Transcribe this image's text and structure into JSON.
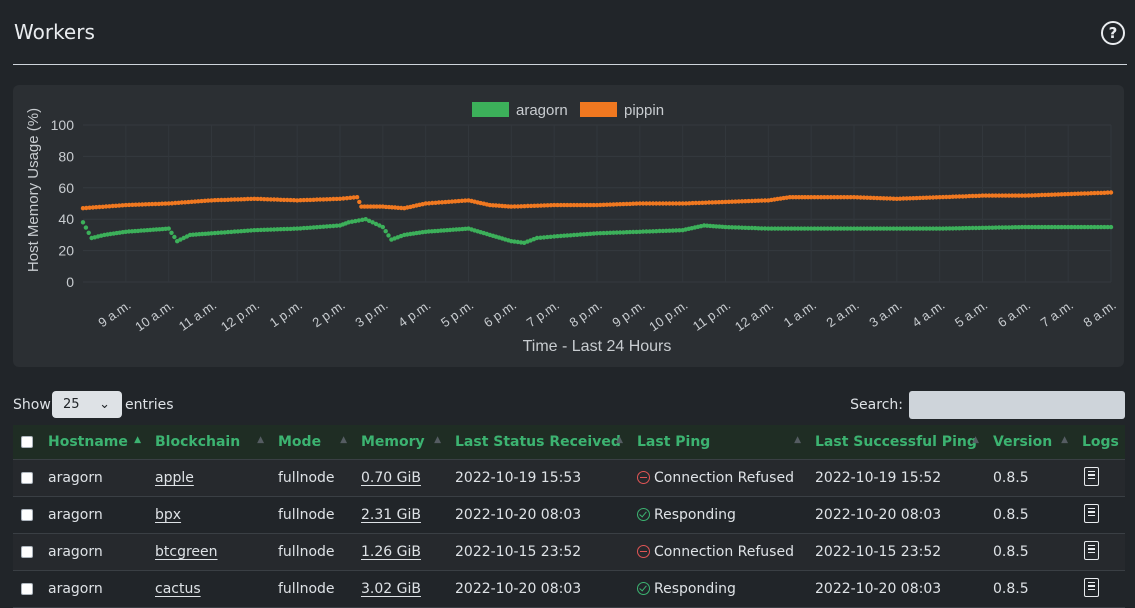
{
  "page": {
    "title": "Workers",
    "help_icon": "question-circle-icon",
    "help_glyph": "?"
  },
  "chart_data": {
    "type": "line",
    "legend": [
      {
        "name": "aragorn",
        "color": "#3cb05a"
      },
      {
        "name": "pippin",
        "color": "#f07820"
      }
    ],
    "ylabel": "Host Memory Usage (%)",
    "xlabel": "Time - Last 24 Hours",
    "ylim": [
      0,
      100
    ],
    "yticks": [
      "100",
      "80",
      "60",
      "40",
      "20",
      "0"
    ],
    "xticks": [
      "9 a.m.",
      "10 a.m.",
      "11 a.m.",
      "12 p.m.",
      "1 p.m.",
      "2 p.m.",
      "3 p.m.",
      "4 p.m.",
      "5 p.m.",
      "6 p.m.",
      "7 p.m.",
      "8 p.m.",
      "9 p.m.",
      "10 p.m.",
      "11 p.m.",
      "12 a.m.",
      "1 a.m.",
      "2 a.m.",
      "3 a.m.",
      "4 a.m.",
      "5 a.m.",
      "6 a.m.",
      "7 a.m.",
      "8 a.m."
    ],
    "x_hours": [
      8,
      32
    ],
    "series": [
      {
        "name": "aragorn",
        "points": [
          [
            8,
            38
          ],
          [
            8.2,
            28
          ],
          [
            8.5,
            30
          ],
          [
            9,
            32
          ],
          [
            9.5,
            33
          ],
          [
            10,
            34
          ],
          [
            10.2,
            26
          ],
          [
            10.5,
            30
          ],
          [
            11,
            31
          ],
          [
            12,
            33
          ],
          [
            13,
            34
          ],
          [
            14,
            36
          ],
          [
            14.2,
            38
          ],
          [
            14.6,
            40
          ],
          [
            15,
            35
          ],
          [
            15.2,
            27
          ],
          [
            15.5,
            30
          ],
          [
            16,
            32
          ],
          [
            16.5,
            33
          ],
          [
            17,
            34
          ],
          [
            17.5,
            30
          ],
          [
            18,
            26
          ],
          [
            18.3,
            25
          ],
          [
            18.6,
            28
          ],
          [
            19,
            29
          ],
          [
            20,
            31
          ],
          [
            21,
            32
          ],
          [
            22,
            33
          ],
          [
            22.5,
            36
          ],
          [
            23,
            35
          ],
          [
            24,
            34
          ],
          [
            26,
            34
          ],
          [
            28,
            34
          ],
          [
            30,
            35
          ],
          [
            32,
            35
          ]
        ]
      },
      {
        "name": "pippin",
        "points": [
          [
            8,
            47
          ],
          [
            9,
            49
          ],
          [
            10,
            50
          ],
          [
            11,
            52
          ],
          [
            12,
            53
          ],
          [
            13,
            52
          ],
          [
            14,
            53
          ],
          [
            14.4,
            54
          ],
          [
            14.5,
            48
          ],
          [
            15,
            48
          ],
          [
            15.5,
            47
          ],
          [
            16,
            50
          ],
          [
            17,
            52
          ],
          [
            17.5,
            49
          ],
          [
            18,
            48
          ],
          [
            19,
            49
          ],
          [
            20,
            49
          ],
          [
            21,
            50
          ],
          [
            22,
            50
          ],
          [
            23,
            51
          ],
          [
            24,
            52
          ],
          [
            24.5,
            54
          ],
          [
            25,
            54
          ],
          [
            26,
            54
          ],
          [
            27,
            53
          ],
          [
            28,
            54
          ],
          [
            29,
            55
          ],
          [
            30,
            55
          ],
          [
            31,
            56
          ],
          [
            32,
            57
          ]
        ]
      }
    ]
  },
  "controls": {
    "show_label": "Show",
    "page_size": "25",
    "entries_label": "entries",
    "search_label": "Search:",
    "search_value": ""
  },
  "table": {
    "columns": [
      "Hostname",
      "Blockchain",
      "Mode",
      "Memory",
      "Last Status Received",
      "Last Ping",
      "Last Successful Ping",
      "Version",
      "Logs"
    ],
    "rows": [
      {
        "hostname": "aragorn",
        "blockchain": "apple",
        "mode": "fullnode",
        "memory": "0.70 GiB",
        "last_status": "2022-10-19 15:53",
        "ping_state": "refused",
        "ping": "Connection Refused",
        "last_success": "2022-10-19 15:52",
        "version": "0.8.5"
      },
      {
        "hostname": "aragorn",
        "blockchain": "bpx",
        "mode": "fullnode",
        "memory": "2.31 GiB",
        "last_status": "2022-10-20 08:03",
        "ping_state": "ok",
        "ping": "Responding",
        "last_success": "2022-10-20 08:03",
        "version": "0.8.5"
      },
      {
        "hostname": "aragorn",
        "blockchain": "btcgreen",
        "mode": "fullnode",
        "memory": "1.26 GiB",
        "last_status": "2022-10-15 23:52",
        "ping_state": "refused",
        "ping": "Connection Refused",
        "last_success": "2022-10-15 23:52",
        "version": "0.8.5"
      },
      {
        "hostname": "aragorn",
        "blockchain": "cactus",
        "mode": "fullnode",
        "memory": "3.02 GiB",
        "last_status": "2022-10-20 08:03",
        "ping_state": "ok",
        "ping": "Responding",
        "last_success": "2022-10-20 08:03",
        "version": "0.8.5"
      }
    ]
  }
}
